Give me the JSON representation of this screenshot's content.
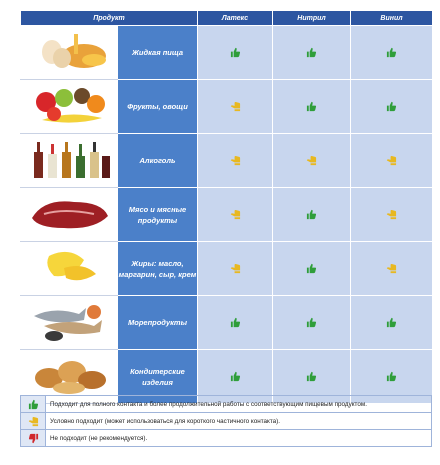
{
  "table": {
    "columns": [
      "Продукт",
      "Латекс",
      "Нитрил",
      "Винил"
    ],
    "rows": [
      "Жидкая пища",
      "Фрукты, овощи",
      "Алкоголь",
      "Мясо и мясные продукты",
      "Жиры: масло, маргарин, сыр, крем",
      "Морепродукты",
      "Кондитерские изделия"
    ]
  },
  "legend": [
    "Подходит для полного контакта и более продолжительной работы с соответствующим пищевым продуктом.",
    "Условно подходит (может использоваться для короткого частичного контакта).",
    "Не подходит (не рекомендуется)."
  ]
}
